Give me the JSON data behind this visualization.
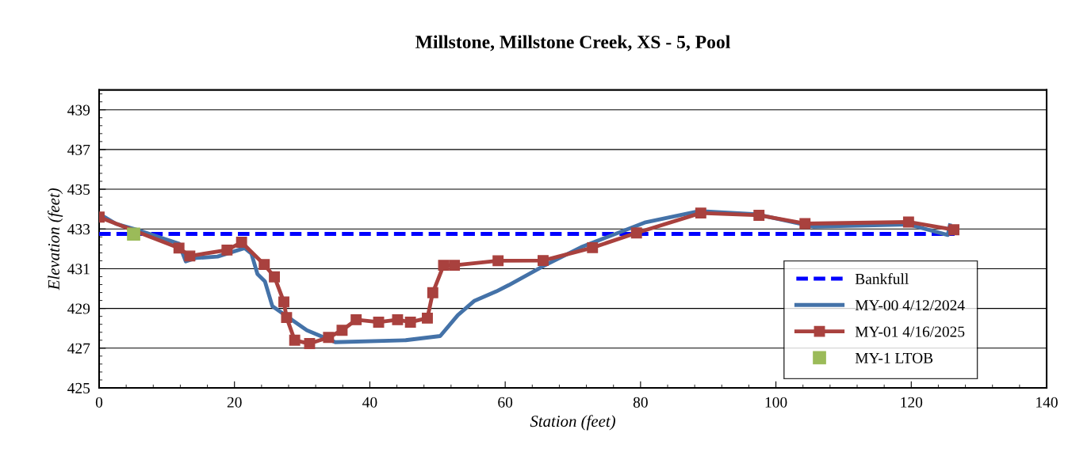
{
  "chart_data": {
    "type": "line",
    "title": "Millstone, Millstone Creek, XS - 5, Pool",
    "xlabel": "Station (feet)",
    "ylabel": "Elevation (feet)",
    "xlim": [
      0,
      140
    ],
    "xticks": [
      0,
      20,
      40,
      60,
      80,
      100,
      120,
      140
    ],
    "ylim": [
      425,
      440
    ],
    "yticks": [
      425,
      427,
      429,
      431,
      433,
      435,
      437,
      439
    ],
    "grid": "y",
    "legend": "bottom right",
    "series": [
      {
        "name": "Bankfull",
        "color": "#0000ff",
        "line_style": "dashed",
        "marker": "none",
        "x": [
          0,
          126.4
        ],
        "values": [
          432.75,
          432.75
        ]
      },
      {
        "name": "MY-00 4/12/2024",
        "color": "#4472a8",
        "line_style": "solid",
        "marker": "none",
        "x": [
          0,
          2.5,
          5.5,
          11.8,
          12.8,
          14.3,
          17.5,
          21.5,
          22.5,
          23.4,
          24.5,
          25.6,
          28.6,
          30.7,
          34.9,
          45.3,
          50.4,
          53.0,
          55.4,
          58.7,
          60.5,
          65.7,
          71.2,
          80.6,
          88.7,
          97.1,
          105.5,
          119.6,
          125.4,
          125.7
        ],
        "values": [
          433.76,
          433.26,
          432.97,
          432.26,
          431.37,
          431.54,
          431.61,
          432.04,
          431.76,
          430.73,
          430.36,
          429.11,
          428.4,
          427.9,
          427.3,
          427.4,
          427.61,
          428.66,
          429.37,
          429.86,
          430.17,
          431.14,
          432.08,
          433.32,
          433.9,
          433.74,
          433.12,
          433.23,
          432.7,
          433.18
        ]
      },
      {
        "name": "MY-01 4/16/2025",
        "color": "#a9413e",
        "line_style": "solid",
        "marker": "square",
        "x": [
          0,
          11.8,
          13.4,
          18.9,
          21.05,
          24.4,
          25.9,
          27.3,
          27.7,
          28.9,
          31.1,
          33.9,
          35.9,
          37.98,
          41.3,
          44.1,
          46.0,
          48.5,
          49.3,
          50.9,
          52.5,
          58.95,
          65.6,
          72.9,
          79.4,
          88.9,
          97.5,
          104.3,
          119.6,
          126.3
        ],
        "values": [
          433.6,
          432.04,
          431.64,
          431.94,
          432.33,
          431.21,
          430.59,
          429.33,
          428.54,
          427.4,
          427.23,
          427.54,
          427.9,
          428.43,
          428.31,
          428.43,
          428.31,
          428.51,
          429.79,
          431.17,
          431.17,
          431.4,
          431.41,
          432.06,
          432.8,
          433.8,
          433.69,
          433.27,
          433.35,
          432.96
        ]
      },
      {
        "name": "MY-1 LTOB",
        "type": "scatter",
        "color": "#9bbb59",
        "marker": "square",
        "x": [
          5.1
        ],
        "values": [
          432.74
        ]
      }
    ]
  }
}
